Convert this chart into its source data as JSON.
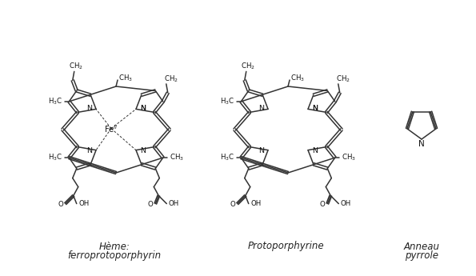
{
  "background_color": "#ffffff",
  "fig_width": 5.95,
  "fig_height": 3.45,
  "dpi": 100,
  "label1_line1": "Hème:",
  "label1_line2": "ferroprotoporphyrin",
  "label2": "Protoporphyrine",
  "label3_line1": "Anneau",
  "label3_line2": "pyrrole",
  "label_fontsize": 8.5,
  "lw": 1.1
}
